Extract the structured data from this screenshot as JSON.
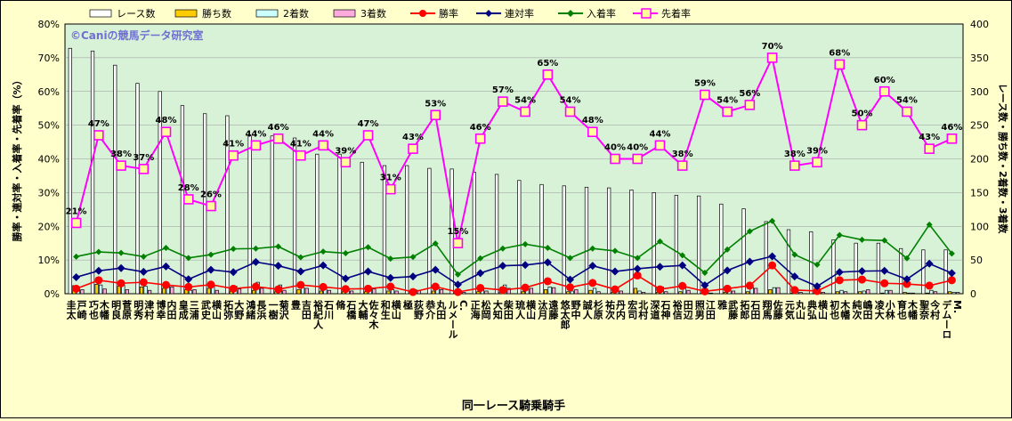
{
  "chart_data": {
    "type": "bar",
    "watermark": "©Caniの競馬データ研究室",
    "xlabel": "同一レース騎乗騎手",
    "ylabel_left": "勝率・連対率・入着率・先着率（%）",
    "ylabel_right": "レース数・勝ち数・2着数・3着数",
    "ylim_left": [
      0,
      80
    ],
    "ylim_right": [
      0,
      400
    ],
    "left_ticks": [
      "0%",
      "10%",
      "20%",
      "30%",
      "40%",
      "50%",
      "60%",
      "70%",
      "80%"
    ],
    "right_ticks": [
      "0",
      "50",
      "100",
      "150",
      "200",
      "250",
      "300",
      "350",
      "400"
    ],
    "categories": [
      "戸崎 圭太",
      "木幡 巧也",
      "菅原 明良",
      "津村 明秀",
      "内田 博幸",
      "三浦 皇成",
      "横山 武史",
      "大野 拓弥",
      "長浜 鴻緒",
      "菊沢 一樹",
      "吉田 豊",
      "石川 裕紀人",
      "石橋 脩",
      "佐々木 大輔",
      "横山 和生",
      "荻野 極",
      "丸田 恭介",
      "C. ルメール",
      "松岡 正海",
      "柴田 大知",
      "横山 琉人",
      "遠藤 汰月",
      "野中 悠太郎",
      "杉原 誠人",
      "丹内 祐次",
      "北村 宏司",
      "石神 深道",
      "田辺 裕信",
      "江田 照男",
      "武藤 雅",
      "石田 拓郎",
      "佐藤 翔馬",
      "丸山 元気",
      "横山 典弘",
      "木幡 初也",
      "嶋田 純次",
      "小林 凌大",
      "木幡 育也",
      "今村 聖奈",
      "M. デムーロ"
    ],
    "series": [
      {
        "name": "レース数",
        "kind": "bar",
        "axis": "right",
        "color": "#ffffff",
        "values": [
          364,
          360,
          339,
          312,
          300,
          279,
          267,
          264,
          234,
          234,
          231,
          207,
          207,
          195,
          190,
          190,
          186,
          185,
          180,
          177,
          168,
          162,
          160,
          158,
          157,
          154,
          150,
          146,
          145,
          133,
          126,
          107,
          95,
          92,
          80,
          75,
          75,
          67,
          65,
          65
        ]
      },
      {
        "name": "勝ち数",
        "kind": "bar",
        "axis": "right",
        "color": "#ffcc00",
        "values": [
          12,
          14,
          11,
          10,
          8,
          6,
          8,
          4,
          5,
          3,
          6,
          4,
          3,
          3,
          4,
          1,
          4,
          1,
          3,
          2,
          3,
          6,
          3,
          5,
          2,
          8,
          2,
          3,
          1,
          2,
          3,
          6,
          1,
          1,
          3,
          3,
          1,
          2,
          1,
          3
        ]
      },
      {
        "name": "2着数",
        "kind": "bar",
        "axis": "right",
        "color": "#ccffff",
        "values": [
          10,
          13,
          13,
          11,
          12,
          5,
          12,
          11,
          17,
          13,
          9,
          10,
          6,
          9,
          6,
          6,
          9,
          5,
          8,
          13,
          11,
          10,
          4,
          8,
          9,
          4,
          10,
          9,
          3,
          8,
          10,
          9,
          4,
          2,
          5,
          4,
          5,
          1,
          5,
          2
        ]
      },
      {
        "name": "3着数",
        "kind": "bar",
        "axis": "right",
        "color": "#ffaadd",
        "values": [
          6,
          7,
          6,
          5,
          10,
          6,
          5,
          7,
          8,
          5,
          8,
          5,
          4,
          7,
          4,
          5,
          6,
          2,
          4,
          8,
          8,
          9,
          6,
          3,
          4,
          2,
          3,
          5,
          1,
          4,
          8,
          9,
          2,
          2,
          3,
          6,
          5,
          1,
          3,
          2
        ]
      },
      {
        "name": "勝率",
        "kind": "line",
        "axis": "left",
        "color": "#ff0000",
        "values": [
          1.5,
          4.0,
          3.1,
          3.4,
          2.6,
          2.0,
          2.7,
          1.5,
          2.1,
          1.3,
          2.6,
          2.0,
          1.4,
          1.5,
          2.1,
          0.5,
          2.1,
          0.5,
          1.7,
          1.1,
          1.8,
          3.7,
          1.9,
          3.2,
          1.3,
          5.4,
          1.3,
          2.3,
          0.7,
          1.5,
          2.4,
          8.4,
          1.1,
          0.8,
          4.0,
          4.2,
          3.1,
          2.9,
          2.4,
          4.0
        ]
      },
      {
        "name": "連対率",
        "kind": "line",
        "axis": "left",
        "color": "#000080",
        "values": [
          4.9,
          6.8,
          7.6,
          6.5,
          8.1,
          4.3,
          7.1,
          6.4,
          9.4,
          8.3,
          6.6,
          8.4,
          4.5,
          6.6,
          4.7,
          5.1,
          7.1,
          2.7,
          6.1,
          8.3,
          8.5,
          9.3,
          4.2,
          8.3,
          6.6,
          7.4,
          8.0,
          8.4,
          2.5,
          6.9,
          9.5,
          11.1,
          5.1,
          2.2,
          6.4,
          6.7,
          6.8,
          4.3,
          8.9,
          6.1
        ]
      },
      {
        "name": "入着率",
        "kind": "line",
        "axis": "left",
        "color": "#008000",
        "values": [
          11.0,
          12.4,
          12.1,
          11.0,
          13.6,
          10.6,
          11.6,
          13.3,
          13.4,
          14.0,
          10.8,
          12.5,
          12.0,
          13.8,
          10.4,
          10.9,
          14.9,
          5.7,
          10.5,
          13.4,
          14.7,
          13.6,
          10.6,
          13.4,
          12.7,
          10.6,
          15.5,
          11.4,
          6.2,
          13.1,
          18.5,
          21.6,
          11.6,
          8.6,
          17.4,
          16.0,
          15.8,
          10.5,
          20.5,
          11.9
        ]
      },
      {
        "name": "先着率",
        "kind": "line",
        "axis": "left",
        "color": "#ff00ff",
        "labeled": true,
        "values": [
          21,
          47,
          38,
          37,
          48,
          28,
          26,
          41,
          44,
          46,
          41,
          44,
          39,
          47,
          31,
          43,
          53,
          15,
          46,
          57,
          54,
          65,
          54,
          48,
          40,
          40,
          44,
          38,
          59,
          54,
          56,
          70,
          38,
          39,
          68,
          50,
          60,
          54,
          43,
          46
        ]
      }
    ]
  }
}
